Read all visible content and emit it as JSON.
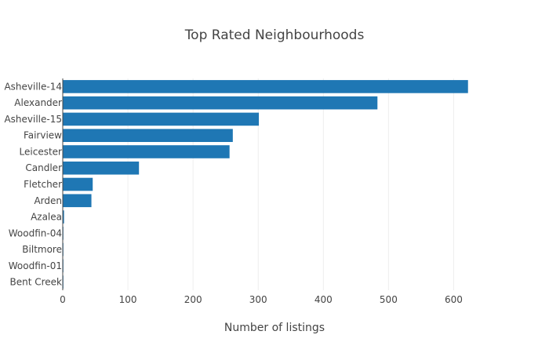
{
  "chart_data": {
    "type": "bar",
    "orientation": "horizontal",
    "title": "Top Rated Neighbourhoods",
    "xlabel": "Number of listings",
    "ylabel": "",
    "categories": [
      "Asheville-14",
      "Alexander",
      "Asheville-15",
      "Fairview",
      "Leicester",
      "Candler",
      "Fletcher",
      "Arden",
      "Azalea",
      "Woodfin-04",
      "Biltmore",
      "Woodfin-01",
      "Bent Creek"
    ],
    "values": [
      622,
      483,
      301,
      261,
      256,
      117,
      46,
      44,
      2,
      1,
      1,
      1,
      1
    ],
    "xlim": [
      0,
      650
    ],
    "xticks": [
      0,
      100,
      200,
      300,
      400,
      500,
      600
    ],
    "grid": true,
    "legend": "none",
    "bar_color": "#1f77b4"
  }
}
